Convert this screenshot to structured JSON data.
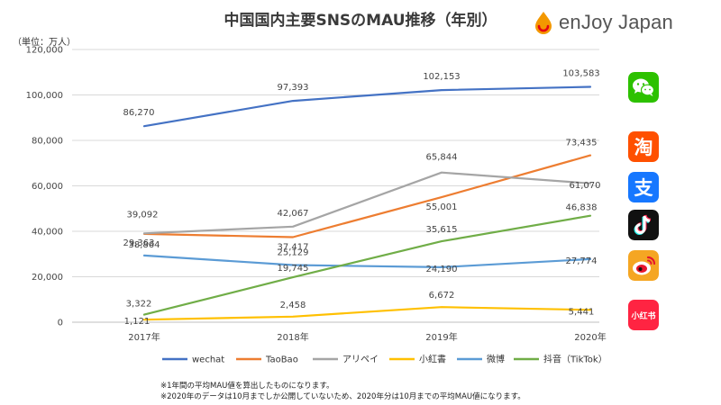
{
  "header": {
    "title": "中国国内主要SNSのMAU推移（年別）",
    "unit": "（単位：万人）",
    "brand": "enJoy Japan"
  },
  "footnotes": [
    "※1年間の平均MAU値を算出したものになります。",
    "※2020年のデータは10月までしか公開していないため、2020年分は10月までの平均MAU値になります。"
  ],
  "app_icons": [
    {
      "name": "wechat-icon",
      "color": "#2DC100"
    },
    {
      "name": "taobao-icon",
      "color": "#FF5000",
      "glyph": "淘"
    },
    {
      "name": "alipay-icon",
      "color": "#1677FF",
      "glyph": "支"
    },
    {
      "name": "tiktok-icon",
      "color": "#111111"
    },
    {
      "name": "weibo-icon",
      "color": "#F5A623"
    },
    {
      "name": "xiaohongshu-icon",
      "color": "#FF2442",
      "glyph": "小红书"
    }
  ],
  "chart_data": {
    "type": "line",
    "categories": [
      "2017年",
      "2018年",
      "2019年",
      "2020年"
    ],
    "ylim": [
      0,
      120000
    ],
    "yticks": [
      "0",
      "20,000",
      "40,000",
      "60,000",
      "80,000",
      "100,000",
      "120,000"
    ],
    "grid": true,
    "legend_position": "bottom",
    "series": [
      {
        "name": "wechat",
        "color": "#4472C4",
        "values": [
          86270,
          97393,
          102153,
          103583
        ],
        "labels": [
          "86,270",
          "97,393",
          "102,153",
          "103,583"
        ]
      },
      {
        "name": "TaoBao",
        "color": "#ED7D31",
        "values": [
          38864,
          37417,
          55001,
          73435
        ],
        "labels": [
          "38,864",
          "37,417",
          "55,001",
          "73,435"
        ]
      },
      {
        "name": "アリペイ",
        "color": "#A5A5A5",
        "values": [
          39092,
          42067,
          65844,
          61070
        ],
        "labels": [
          "39,092",
          "42,067",
          "65,844",
          "61,070"
        ]
      },
      {
        "name": "小紅書",
        "color": "#FFC000",
        "values": [
          1121,
          2458,
          6672,
          5441
        ],
        "labels": [
          "1,121",
          "2,458",
          "6,672",
          "5,441"
        ]
      },
      {
        "name": "微博",
        "color": "#5B9BD5",
        "values": [
          29363,
          25129,
          24190,
          27774
        ],
        "labels": [
          "29,363",
          "25,129",
          "24,190",
          "27,774"
        ]
      },
      {
        "name": "抖音（TikTok）",
        "color": "#70AD47",
        "values": [
          3322,
          19745,
          35615,
          46838
        ],
        "labels": [
          "3,322",
          "19,745",
          "35,615",
          "46,838"
        ]
      }
    ]
  }
}
